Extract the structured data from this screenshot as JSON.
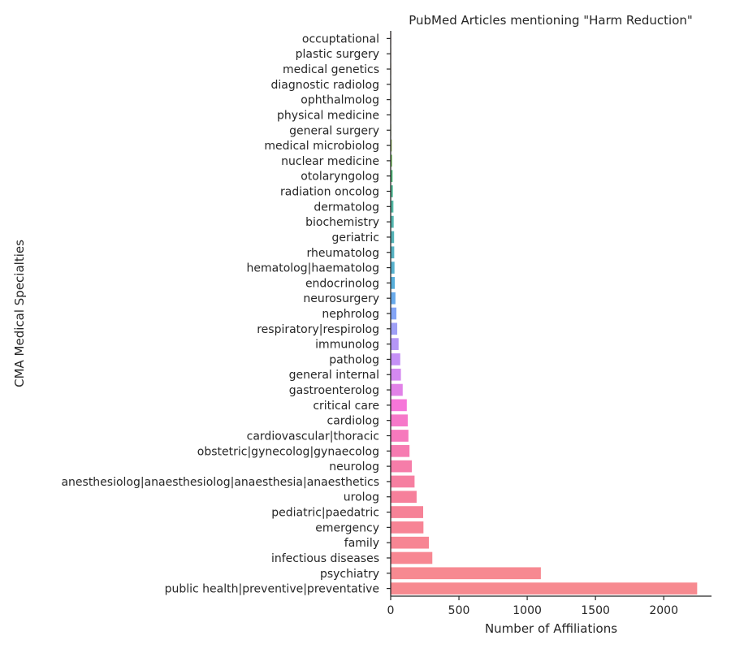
{
  "chart_data": {
    "type": "bar",
    "orientation": "horizontal",
    "title": "PubMed Articles mentioning \"Harm Reduction\"",
    "xlabel": "Number of Affiliations",
    "ylabel": "CMA Medical Specialties",
    "xlim": [
      0,
      2350
    ],
    "xticks": [
      "0",
      "500",
      "1000",
      "1500",
      "2000"
    ],
    "grid": false,
    "categories": [
      "occuptational",
      "plastic surgery",
      "medical genetics",
      "diagnostic radiolog",
      "ophthalmolog",
      "physical medicine",
      "general surgery",
      "medical microbiolog",
      "nuclear medicine",
      "otolaryngolog",
      "radiation oncolog",
      "dermatolog",
      "biochemistry",
      "geriatric",
      "rheumatolog",
      "hematolog|haematolog",
      "endocrinolog",
      "neurosurgery",
      "nephrolog",
      "respiratory|respirolog",
      "immunolog",
      "patholog",
      "general internal",
      "gastroenterolog",
      "critical care",
      "cardiolog",
      "cardiovascular|thoracic",
      "obstetric|gynecolog|gynaecolog",
      "neurolog",
      "anesthesiolog|anaesthesiolog|anaesthesia|anaesthetics",
      "urolog",
      "pediatric|paedatric",
      "emergency",
      "family",
      "infectious diseases",
      "psychiatry",
      "public health|preventive|preventative"
    ],
    "values": [
      1,
      1,
      2,
      2,
      3,
      3,
      4,
      8,
      10,
      14,
      16,
      20,
      22,
      25,
      26,
      28,
      30,
      35,
      42,
      48,
      58,
      70,
      75,
      88,
      118,
      125,
      130,
      138,
      155,
      175,
      190,
      238,
      240,
      280,
      305,
      1100,
      2245
    ],
    "colors": [
      "#f77189",
      "#f7754f",
      "#e48f32",
      "#d09b31",
      "#bea431",
      "#aba932",
      "#97af31",
      "#7aa931",
      "#50b131",
      "#33b064",
      "#34ae82",
      "#35ab94",
      "#36a9a1",
      "#37a7ac",
      "#38a5b7",
      "#39a3c4",
      "#3aa0d3",
      "#4e9be8",
      "#6e95f4",
      "#8e8ff4",
      "#a884f4",
      "#bb7cf4",
      "#cc74ee",
      "#dc6ce3",
      "#f45ed2",
      "#f460c0",
      "#f462b0",
      "#f564a3",
      "#f5669a",
      "#f56891",
      "#f56a8a",
      "#f56c85",
      "#f66e82",
      "#f67080",
      "#f6727f",
      "#f6747e",
      "#f6767d"
    ],
    "bar_fill_opacity": 0.85
  }
}
